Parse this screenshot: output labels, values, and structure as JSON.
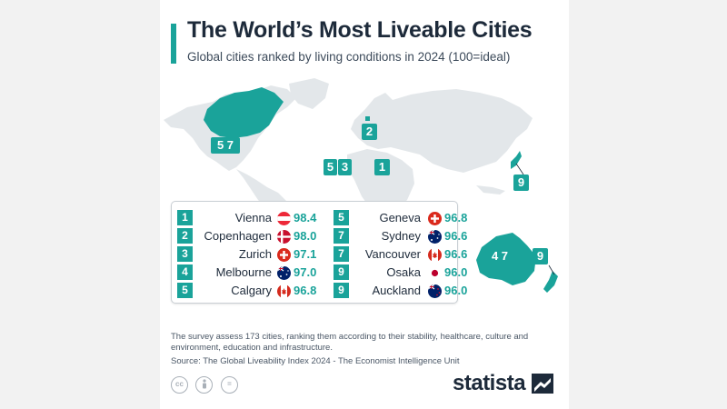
{
  "title": "The World’s Most Liveable Cities",
  "subtitle": "Global cities ranked by living conditions in 2024 (100=ideal)",
  "chart_data": {
    "type": "table",
    "columns": [
      [
        {
          "rank": "1",
          "city": "Vienna",
          "country": "Austria",
          "score": "98.4"
        },
        {
          "rank": "2",
          "city": "Copenhagen",
          "country": "Denmark",
          "score": "98.0"
        },
        {
          "rank": "3",
          "city": "Zurich",
          "country": "Switzerland",
          "score": "97.1"
        },
        {
          "rank": "4",
          "city": "Melbourne",
          "country": "Australia",
          "score": "97.0"
        },
        {
          "rank": "5",
          "city": "Calgary",
          "country": "Canada",
          "score": "96.8"
        }
      ],
      [
        {
          "rank": "5",
          "city": "Geneva",
          "country": "Switzerland",
          "score": "96.8"
        },
        {
          "rank": "7",
          "city": "Sydney",
          "country": "Australia",
          "score": "96.6"
        },
        {
          "rank": "7",
          "city": "Vancouver",
          "country": "Canada",
          "score": "96.6"
        },
        {
          "rank": "9",
          "city": "Osaka",
          "country": "Japan",
          "score": "96.0"
        },
        {
          "rank": "9",
          "city": "Auckland",
          "country": "New Zealand",
          "score": "96.0"
        }
      ]
    ],
    "map_labels": [
      {
        "name": "canada",
        "text": "5 7"
      },
      {
        "name": "denmark",
        "text": "2"
      },
      {
        "name": "switzerland",
        "text": "5"
      },
      {
        "name": "zurich",
        "text": "3"
      },
      {
        "name": "austria",
        "text": "1"
      },
      {
        "name": "japan",
        "text": "9"
      },
      {
        "name": "australia",
        "text": "4 7"
      },
      {
        "name": "new-zealand",
        "text": "9"
      }
    ],
    "highlighted_countries": [
      "Canada",
      "Denmark",
      "Switzerland",
      "Austria",
      "Japan",
      "Australia",
      "New Zealand"
    ]
  },
  "note": "The survey assess 173 cities, ranking them according to their stability, healthcare, culture and environment, education and infrastructure.",
  "source": "Source: The Global Liveability Index 2024 - The Economist Intelligence Unit",
  "license_icons": [
    "cc",
    "by",
    "="
  ],
  "logo": "statista",
  "colors": {
    "accent": "#1aa39a",
    "land": "#e3e7ea",
    "text": "#1d2a3a",
    "background": "#f2f2f2"
  }
}
